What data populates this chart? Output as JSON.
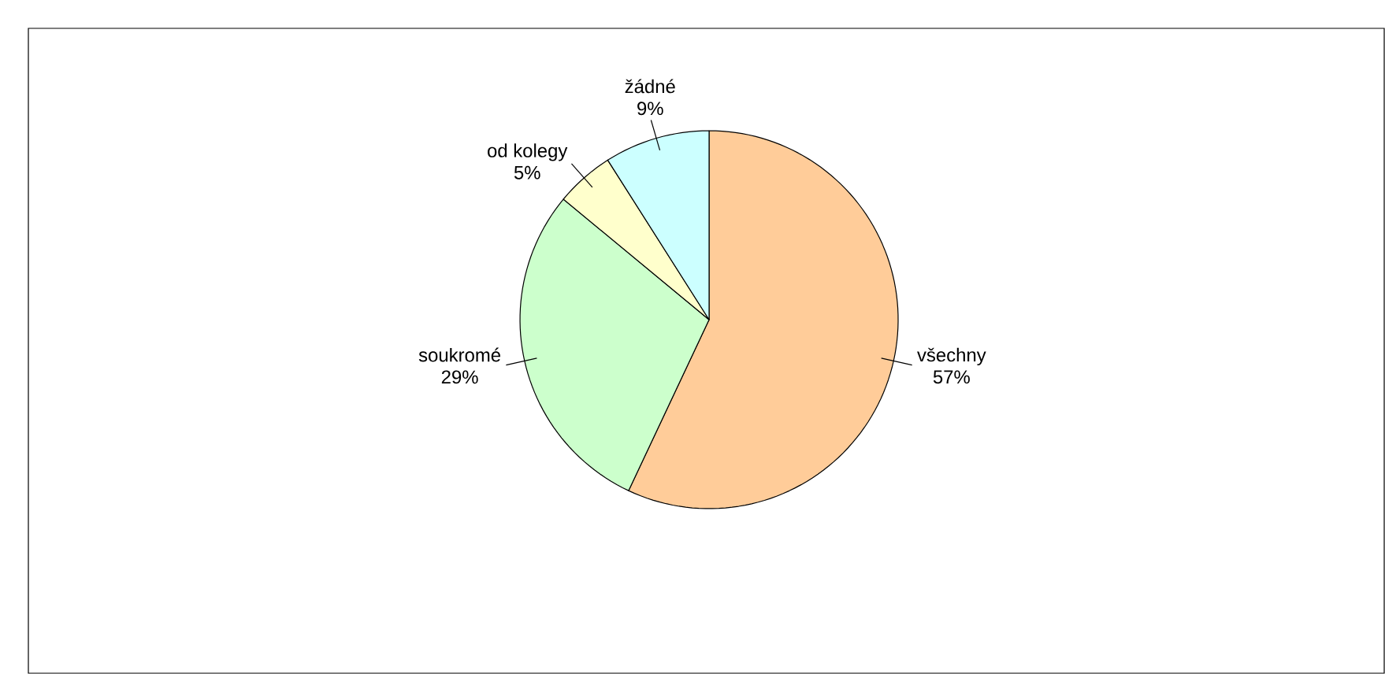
{
  "chart_data": {
    "type": "pie",
    "categories": [
      "všechny",
      "soukromé",
      "od kolegy",
      "žádné"
    ],
    "values": [
      57,
      29,
      5,
      9
    ],
    "value_labels": [
      "57%",
      "29%",
      "5%",
      "9%"
    ],
    "colors": [
      "#ffcc99",
      "#ccffcc",
      "#ffffcc",
      "#ccffff"
    ]
  }
}
